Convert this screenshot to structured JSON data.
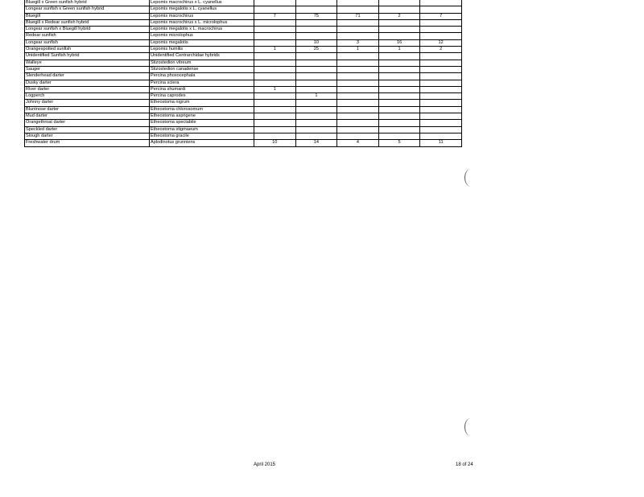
{
  "table": {
    "rows": [
      {
        "common": "Bluegill x Green sunfish hybrid",
        "scientific": "Lepomis macrochirus x L. cyanellus",
        "counts": [
          "",
          "",
          "",
          "",
          ""
        ]
      },
      {
        "common": "Longear sunfish x Green sunfish hybrid",
        "scientific": "Lepomis megalotis x L. cyanellus",
        "counts": [
          "",
          "",
          "",
          "",
          ""
        ]
      },
      {
        "common": "Bluegill",
        "scientific": "Lepomis macrochirus",
        "counts": [
          "7",
          "75",
          "71",
          "2",
          "7"
        ]
      },
      {
        "common": "Bluegill x Redear sunfish hybrid",
        "scientific": "Lepomis macrochirus x L. microlophus",
        "counts": [
          "",
          "",
          "",
          "",
          ""
        ]
      },
      {
        "common": "Longear sunfish x Bluegill hybrid",
        "scientific": "Lepomis megalotis x L. macrochirus",
        "counts": [
          "",
          "",
          "",
          "",
          ""
        ]
      },
      {
        "common": "Redear sunfish",
        "scientific": "Lepomis microlophus",
        "counts": [
          "",
          "",
          "",
          "",
          ""
        ]
      },
      {
        "common": "Longear sunfish",
        "scientific": "Lepomis megalotis",
        "counts": [
          "",
          "10",
          "3",
          "16",
          "12"
        ]
      },
      {
        "common": "Orangespotted sunfish",
        "scientific": "Lepomis humilis",
        "counts": [
          "1",
          "25",
          "1",
          "1",
          "2"
        ]
      },
      {
        "common": "Unidentified Sunfish hybrid",
        "scientific": "Unidentified Centrarchidae hybrids",
        "counts": [
          "",
          "",
          "",
          "",
          ""
        ]
      },
      {
        "common": "Walleye",
        "scientific": "Stizostedion vitreum",
        "counts": [
          "",
          "",
          "",
          "",
          ""
        ]
      },
      {
        "common": "Sauger",
        "scientific": "Stizostedion canadense",
        "counts": [
          "",
          "",
          "",
          "",
          ""
        ]
      },
      {
        "common": "Slenderhead darter",
        "scientific": "Percina phoxocephala",
        "counts": [
          "",
          "",
          "",
          "",
          ""
        ]
      },
      {
        "common": "Dusky darter",
        "scientific": "Percina sciera",
        "counts": [
          "",
          "",
          "",
          "",
          ""
        ]
      },
      {
        "common": "River darter",
        "scientific": "Percina shumardi",
        "counts": [
          "1",
          "",
          "",
          "",
          ""
        ]
      },
      {
        "common": "Logperch",
        "scientific": "Percina caprodes",
        "counts": [
          "",
          "1",
          "",
          "",
          ""
        ]
      },
      {
        "common": "Johnny darter",
        "scientific": "Etheostoma nigrum",
        "counts": [
          "",
          "",
          "",
          "",
          ""
        ]
      },
      {
        "common": "Bluntnose darter",
        "scientific": "Etheostoma chlorosomum",
        "counts": [
          "",
          "",
          "",
          "",
          ""
        ]
      },
      {
        "common": "Mud darter",
        "scientific": "Etheostoma asprigene",
        "counts": [
          "",
          "",
          "",
          "",
          ""
        ]
      },
      {
        "common": "Orangethroat darter",
        "scientific": "Etheostoma spectabile",
        "counts": [
          "",
          "",
          "",
          "",
          ""
        ]
      },
      {
        "common": "Speckled darter",
        "scientific": "Etheostoma stigmaeum",
        "counts": [
          "",
          "",
          "",
          "",
          ""
        ]
      },
      {
        "common": "Slough darter",
        "scientific": "Etheostoma gracile",
        "counts": [
          "",
          "",
          "",
          "",
          ""
        ]
      },
      {
        "common": "Freshwater drum",
        "scientific": "Aplodinotus grunniens",
        "counts": [
          "10",
          "14",
          "4",
          "5",
          "11"
        ]
      }
    ]
  },
  "footer": {
    "date": "April 2015",
    "page": "18 of 24"
  }
}
